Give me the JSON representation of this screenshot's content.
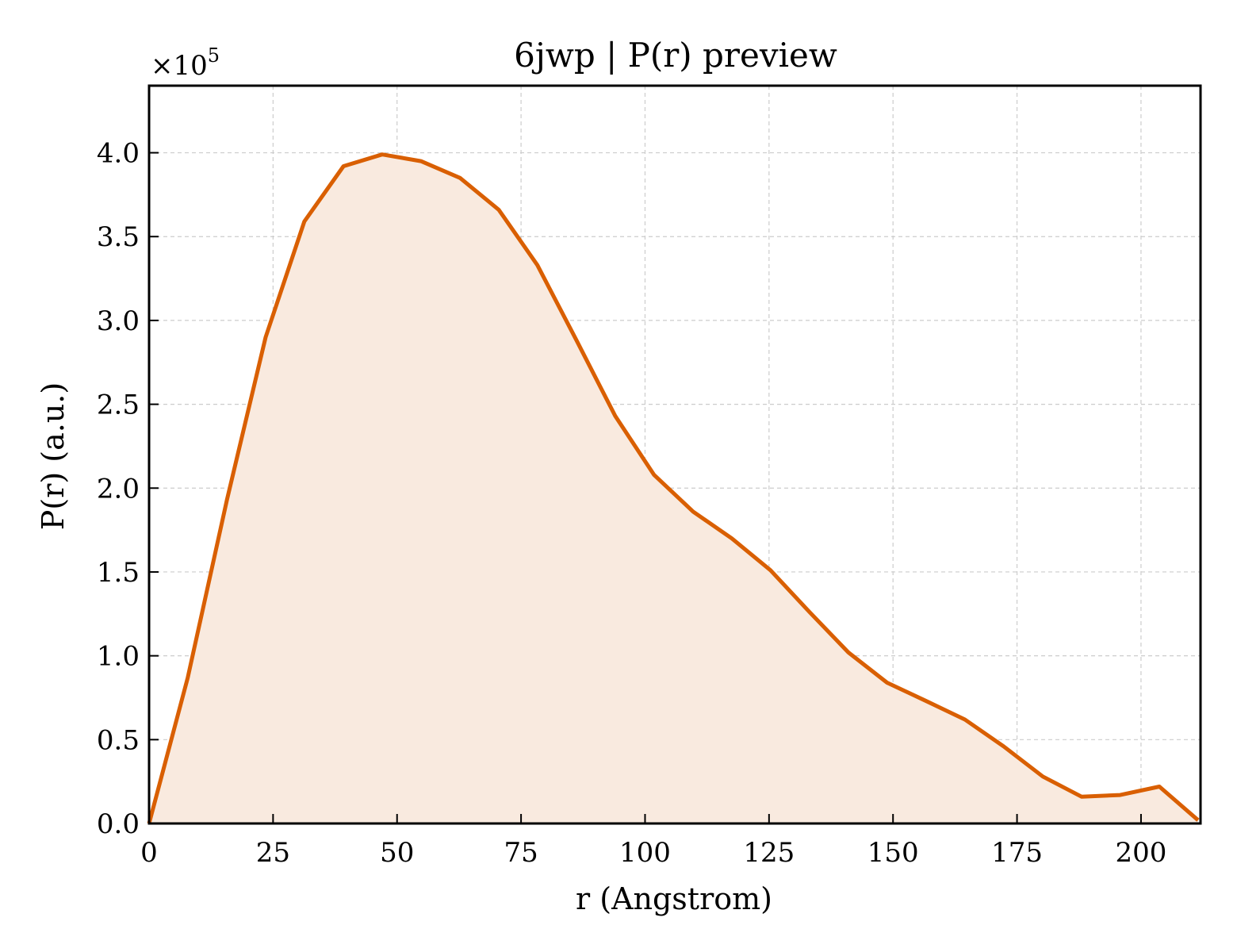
{
  "chart_data": {
    "type": "area",
    "title": "6jwp | P(r) preview",
    "xlabel": "r (Angstrom)",
    "ylabel": "P(r) (a.u.)",
    "y_multiplier_label": "×10",
    "y_multiplier_exponent": "5",
    "xlim": [
      0,
      212
    ],
    "ylim": [
      0,
      4.4
    ],
    "xticks": [
      0,
      25,
      50,
      75,
      100,
      125,
      150,
      175,
      200
    ],
    "xtick_labels": [
      "0",
      "25",
      "50",
      "75",
      "100",
      "125",
      "150",
      "175",
      "200"
    ],
    "yticks": [
      0,
      0.5,
      1.0,
      1.5,
      2.0,
      2.5,
      3.0,
      3.5,
      4.0
    ],
    "ytick_labels": [
      "0.0",
      "0.5",
      "1.0",
      "1.5",
      "2.0",
      "2.5",
      "3.0",
      "3.5",
      "4.0"
    ],
    "grid": true,
    "line_color": "#d95f02",
    "fill_color": "#f9eadf",
    "series": [
      {
        "x": [
          0,
          7.8,
          15.7,
          23.5,
          31.3,
          39.2,
          47.0,
          54.8,
          62.7,
          70.5,
          78.3,
          86.2,
          94.0,
          101.8,
          109.7,
          117.5,
          125.3,
          133.2,
          141.0,
          148.8,
          156.7,
          164.5,
          172.3,
          180.2,
          188.0,
          195.8,
          203.7,
          211.5
        ],
        "y": [
          0,
          0.87,
          1.93,
          2.9,
          3.59,
          3.92,
          3.99,
          3.95,
          3.85,
          3.66,
          3.33,
          2.88,
          2.43,
          2.08,
          1.86,
          1.7,
          1.51,
          1.26,
          1.02,
          0.84,
          0.73,
          0.62,
          0.46,
          0.28,
          0.16,
          0.17,
          0.22,
          0.02
        ]
      }
    ]
  }
}
